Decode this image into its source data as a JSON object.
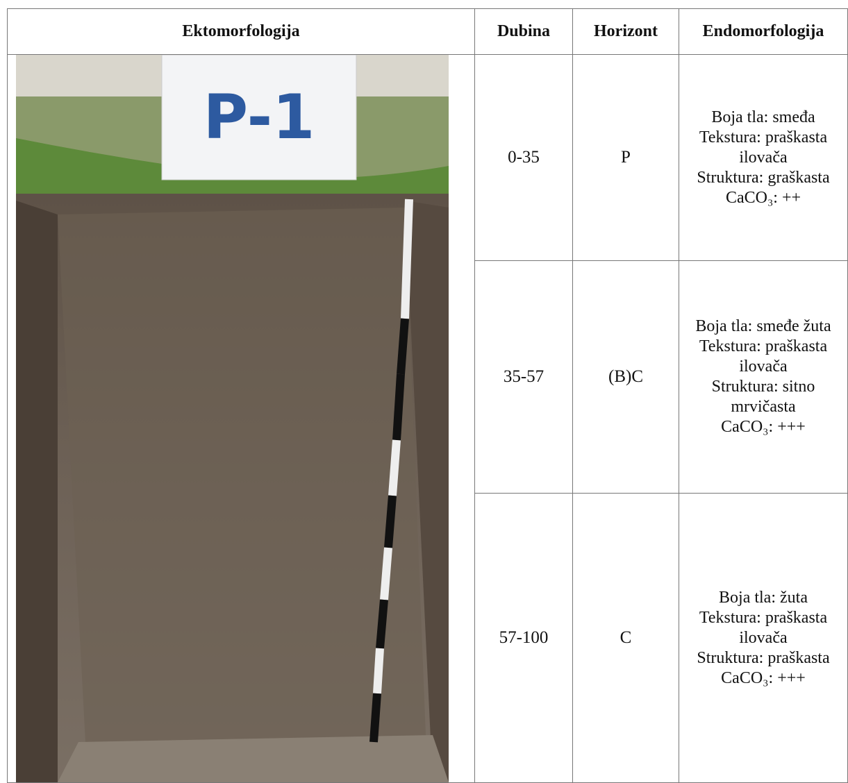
{
  "table": {
    "header": [
      "Ektomorfologija",
      "Dubina",
      "Horizont",
      "Endomorfologija"
    ],
    "photo": {
      "sign_label": "P-1"
    },
    "rows": [
      {
        "depth": "0-35",
        "horizon": "P",
        "properties": [
          "Boja tla: smeđa",
          "Tekstura: praškasta ilovača",
          "Struktura: graškasta",
          "CaCO₃: ++"
        ]
      },
      {
        "depth": "35-57",
        "horizon": "(B)C",
        "properties": [
          "Boja tla: smeđe žuta",
          "Tekstura: praškasta ilovača",
          "Struktura: sitno mrvičasta",
          "CaCO₃: +++"
        ]
      },
      {
        "depth": "57-100",
        "horizon": "C",
        "properties": [
          "Boja tla: žuta",
          "Tekstura: praškasta ilovača",
          "Struktura: praškasta",
          "CaCO₃: +++"
        ]
      }
    ]
  }
}
